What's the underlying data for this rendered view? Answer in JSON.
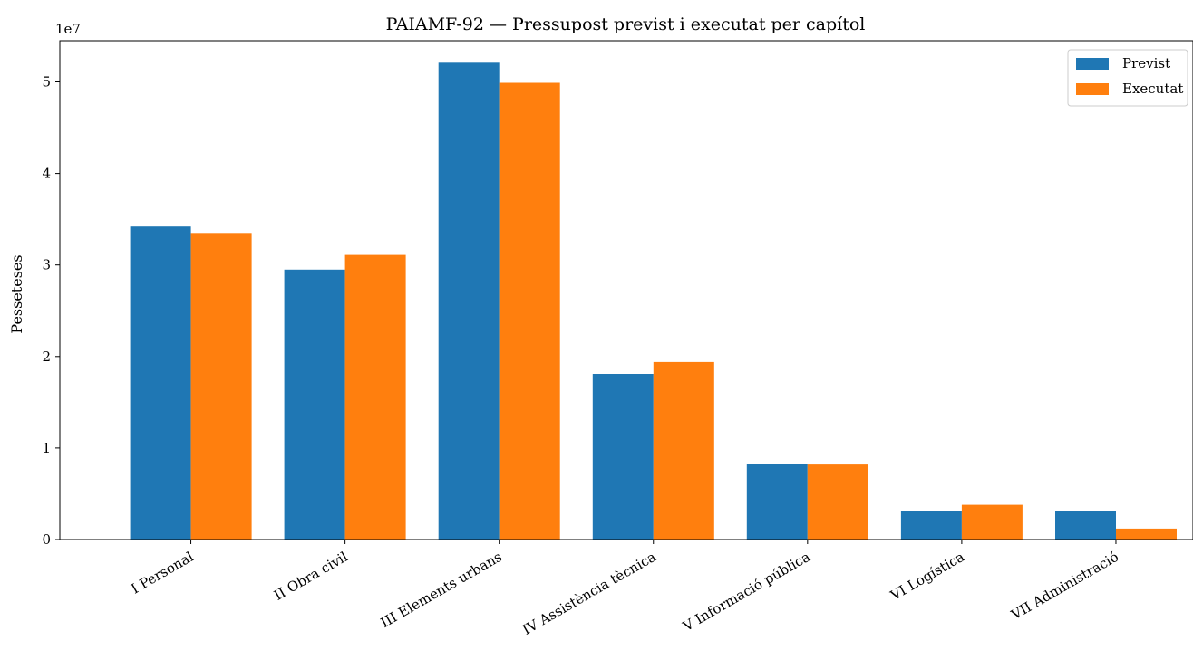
{
  "chart_data": {
    "type": "bar",
    "title": "PAIAMF-92 — Pressupost previst i executat per capítol",
    "xlabel": "",
    "ylabel": "Pesseteses",
    "scale_label": "1e7",
    "categories": [
      "I Personal",
      "II Obra civil",
      "III Elements urbans",
      "IV Assistència tècnica",
      "V Informació pública",
      "VI Logística",
      "VII Administració"
    ],
    "series": [
      {
        "name": "Previst",
        "color": "#1f77b4",
        "values": [
          34200000,
          29500000,
          52100000,
          18100000,
          8300000,
          3100000,
          3100000
        ]
      },
      {
        "name": "Executat",
        "color": "#ff7f0e",
        "values": [
          33500000,
          31100000,
          49900000,
          19400000,
          8200000,
          3800000,
          1200000
        ]
      }
    ],
    "ylim": [
      0,
      54500000
    ],
    "yticks": [
      0,
      1,
      2,
      3,
      4,
      5
    ],
    "grid": false,
    "legend": "top-right"
  }
}
